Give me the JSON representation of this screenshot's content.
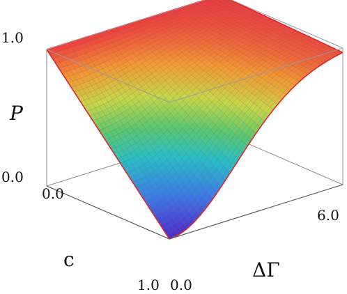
{
  "chart_data": {
    "type": "surface3d",
    "zlabel": "P",
    "xlabel": "c",
    "ylabel": "ΔΓ",
    "x_ticks": [
      "0.0",
      "1.0"
    ],
    "y_ticks": [
      "0.0",
      "6.0"
    ],
    "z_ticks": [
      "0.0",
      "1.0"
    ],
    "xlim": [
      0.0,
      1.0
    ],
    "ylim": [
      0.0,
      6.0
    ],
    "zlim": [
      0.0,
      1.0
    ],
    "colormap": "rainbow",
    "edge_color": "#e0242b",
    "grid": false,
    "mesh": true,
    "surface_samples": {
      "description_free_values": true,
      "points": [
        {
          "c": 0.0,
          "dGamma": 0.0,
          "P": 1.0
        },
        {
          "c": 0.0,
          "dGamma": 6.0,
          "P": 1.0
        },
        {
          "c": 1.0,
          "dGamma": 0.0,
          "P": 0.0
        },
        {
          "c": 1.0,
          "dGamma": 1.0,
          "P": 0.05
        },
        {
          "c": 1.0,
          "dGamma": 2.0,
          "P": 0.3
        },
        {
          "c": 1.0,
          "dGamma": 3.0,
          "P": 0.62
        },
        {
          "c": 1.0,
          "dGamma": 4.0,
          "P": 0.82
        },
        {
          "c": 1.0,
          "dGamma": 6.0,
          "P": 0.95
        },
        {
          "c": 0.5,
          "dGamma": 0.0,
          "P": 0.5
        }
      ]
    }
  }
}
